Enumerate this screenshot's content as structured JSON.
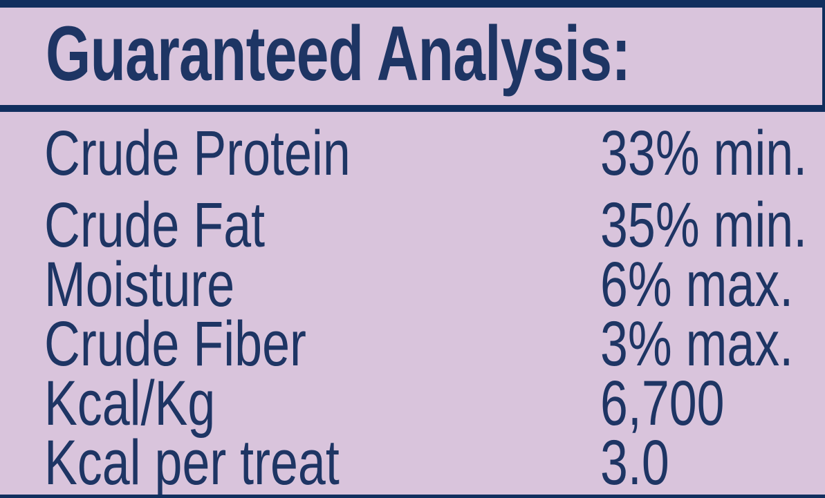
{
  "panel": {
    "title": "Guaranteed Analysis:",
    "rows": [
      {
        "name": "Crude Protein",
        "value": "33% min."
      },
      {
        "name": "Crude Fat",
        "value": "35% min."
      },
      {
        "name": "Moisture",
        "value": "6% max."
      },
      {
        "name": "Crude Fiber",
        "value": "3% max."
      },
      {
        "name": "Kcal/Kg",
        "value": "6,700"
      },
      {
        "name": "Kcal per treat",
        "value": "3.0"
      }
    ],
    "colors": {
      "background": "#d9c4dc",
      "text": "#1e3564",
      "rule": "#112f5e"
    }
  }
}
